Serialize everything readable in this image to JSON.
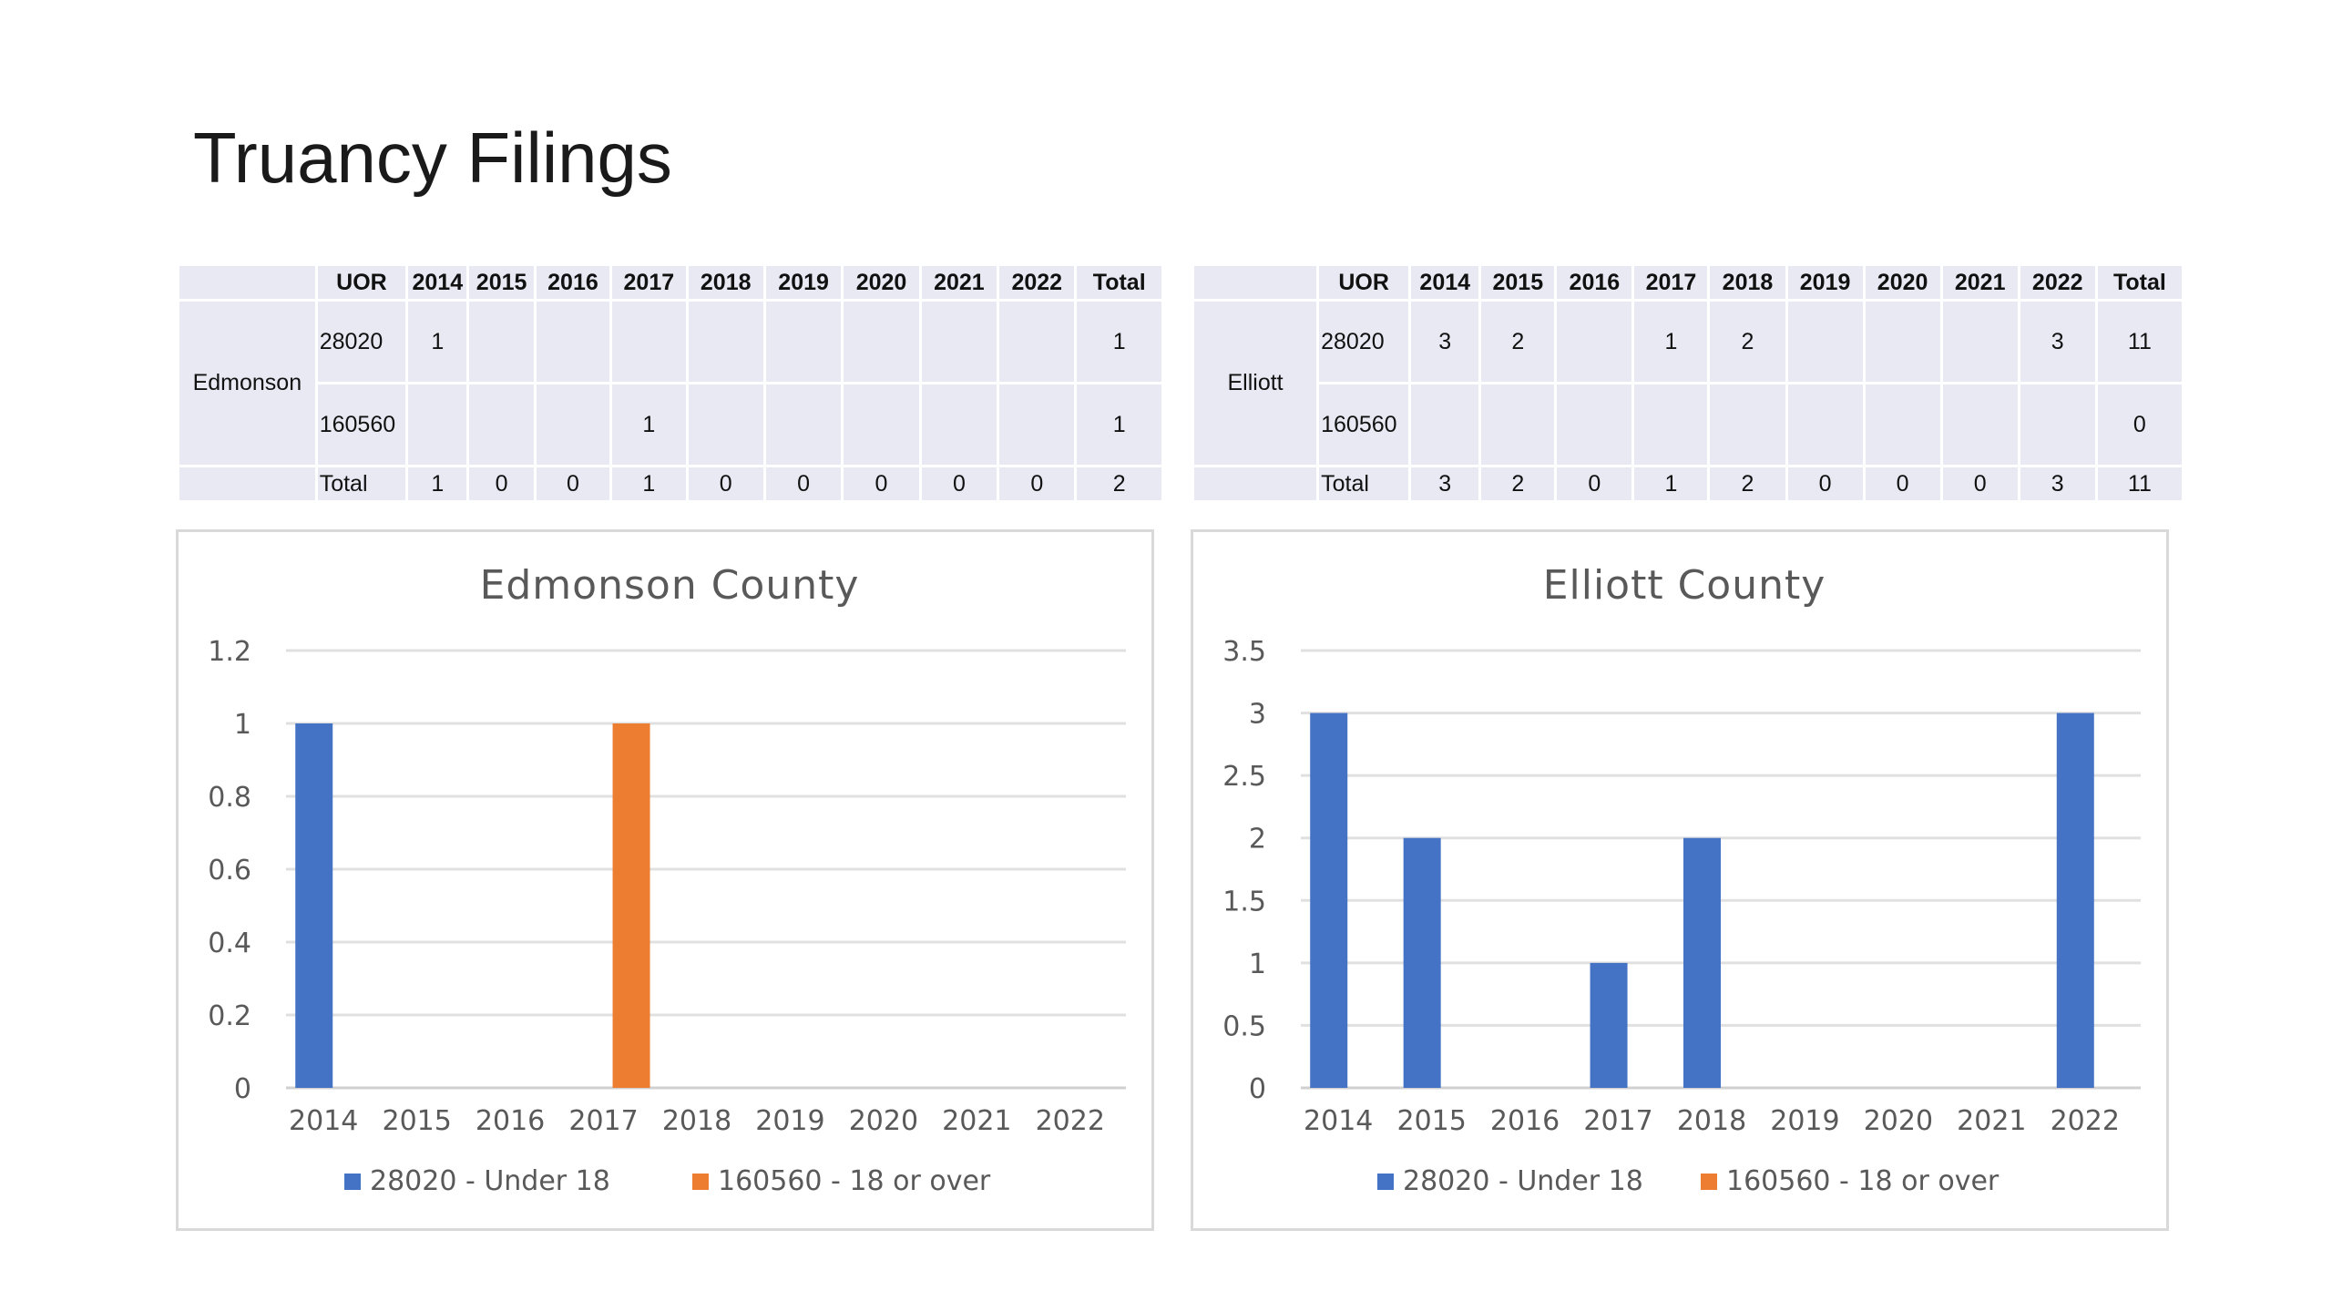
{
  "page": {
    "title": "Truancy Filings"
  },
  "tables": [
    {
      "county": "Edmonson",
      "header": [
        "UOR",
        "2014",
        "2015",
        "2016",
        "2017",
        "2018",
        "2019",
        "2020",
        "2021",
        "2022",
        "Total"
      ],
      "rows": [
        [
          "28020",
          "1",
          "",
          "",
          "",
          "",
          "",
          "",
          "",
          "",
          "1"
        ],
        [
          "160560",
          "",
          "",
          "",
          "1",
          "",
          "",
          "",
          "",
          "",
          "1"
        ],
        [
          "Total",
          "1",
          "0",
          "0",
          "1",
          "0",
          "0",
          "0",
          "0",
          "0",
          "2"
        ]
      ]
    },
    {
      "county": "Elliott",
      "header": [
        "UOR",
        "2014",
        "2015",
        "2016",
        "2017",
        "2018",
        "2019",
        "2020",
        "2021",
        "2022",
        "Total"
      ],
      "rows": [
        [
          "28020",
          "3",
          "2",
          "",
          "1",
          "2",
          "",
          "",
          "",
          "3",
          "11"
        ],
        [
          "160560",
          "",
          "",
          "",
          "",
          "",
          "",
          "",
          "",
          "",
          "0"
        ],
        [
          "Total",
          "3",
          "2",
          "0",
          "1",
          "2",
          "0",
          "0",
          "0",
          "3",
          "11"
        ]
      ]
    }
  ],
  "chart_data": [
    {
      "type": "bar",
      "title": "Edmonson County",
      "categories": [
        "2014",
        "2015",
        "2016",
        "2017",
        "2018",
        "2019",
        "2020",
        "2021",
        "2022"
      ],
      "series": [
        {
          "name": "28020 - Under 18",
          "color": "#4472c4",
          "values": [
            1,
            0,
            0,
            0,
            0,
            0,
            0,
            0,
            0
          ]
        },
        {
          "name": "160560 - 18 or over",
          "color": "#ed7d31",
          "values": [
            0,
            0,
            0,
            1,
            0,
            0,
            0,
            0,
            0
          ]
        }
      ],
      "ylim": [
        0,
        1.2
      ],
      "yticks": [
        "0",
        "0.2",
        "0.4",
        "0.6",
        "0.8",
        "1",
        "1.2"
      ],
      "grid": true,
      "legend": "bottom"
    },
    {
      "type": "bar",
      "title": "Elliott County",
      "categories": [
        "2014",
        "2015",
        "2016",
        "2017",
        "2018",
        "2019",
        "2020",
        "2021",
        "2022"
      ],
      "series": [
        {
          "name": "28020 - Under 18",
          "color": "#4472c4",
          "values": [
            3,
            2,
            0,
            1,
            2,
            0,
            0,
            0,
            3
          ]
        },
        {
          "name": "160560 - 18 or over",
          "color": "#ed7d31",
          "values": [
            0,
            0,
            0,
            0,
            0,
            0,
            0,
            0,
            0
          ]
        }
      ],
      "ylim": [
        0,
        3.5
      ],
      "yticks": [
        "0",
        "0.5",
        "1",
        "1.5",
        "2",
        "2.5",
        "3",
        "3.5"
      ],
      "grid": true,
      "legend": "bottom"
    }
  ]
}
